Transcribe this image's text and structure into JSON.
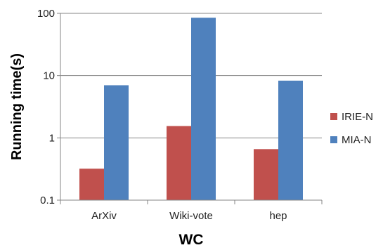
{
  "chart_data": {
    "type": "bar",
    "title": "",
    "xlabel": "WC",
    "ylabel": "Running time(s)",
    "yscale": "log",
    "ylim": [
      0.1,
      100
    ],
    "yticks": [
      "0.1",
      "1",
      "10",
      "100"
    ],
    "grid": true,
    "legend_position": "right",
    "categories": [
      "ArXiv",
      "Wiki-vote",
      "hep"
    ],
    "series": [
      {
        "name": "IRIE-N",
        "color": "#c0504d",
        "values": [
          0.32,
          1.55,
          0.66
        ]
      },
      {
        "name": "MIA-N",
        "color": "#4f81bd",
        "values": [
          7.0,
          85,
          8.3
        ]
      }
    ]
  }
}
